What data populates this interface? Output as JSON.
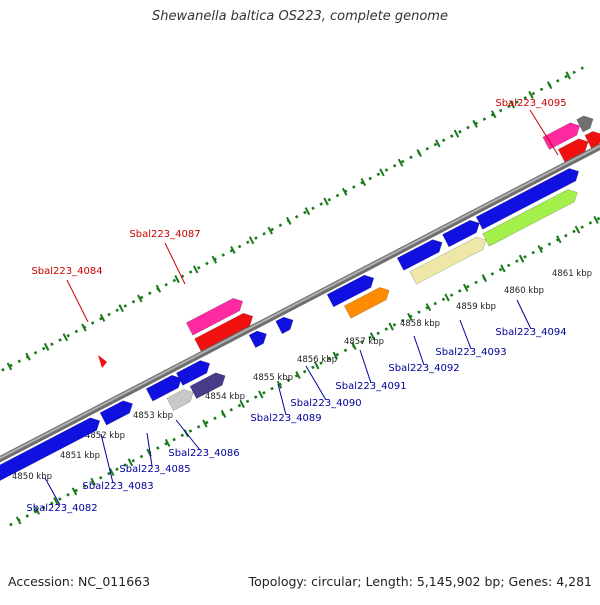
{
  "title": "Shewanella baltica OS223, complete genome",
  "footer": {
    "accession": "Accession: NC_011663",
    "summary": "Topology: circular; Length: 5,145,902 bp; Genes: 4,281"
  },
  "colors": {
    "forward_label": "#cc0000",
    "reverse_label": "#000099",
    "backbone": "#8a8a8a",
    "tick": "#1a7a1a"
  },
  "scale_ticks": [
    "4850 kbp",
    "4851 kbp",
    "4852 kbp",
    "4853 kbp",
    "4854 kbp",
    "4855 kbp",
    "4856 kbp",
    "4857 kbp",
    "4858 kbp",
    "4859 kbp",
    "4860 kbp",
    "4861 kbp"
  ],
  "gene_labels": [
    {
      "text": "Sbal223_4095",
      "strand": "forward"
    },
    {
      "text": "Sbal223_4087",
      "strand": "forward"
    },
    {
      "text": "Sbal223_4084",
      "strand": "forward"
    },
    {
      "text": "Sbal223_4094",
      "strand": "reverse"
    },
    {
      "text": "Sbal223_4093",
      "strand": "reverse"
    },
    {
      "text": "Sbal223_4092",
      "strand": "reverse"
    },
    {
      "text": "Sbal223_4091",
      "strand": "reverse"
    },
    {
      "text": "Sbal223_4090",
      "strand": "reverse"
    },
    {
      "text": "Sbal223_4089",
      "strand": "reverse"
    },
    {
      "text": "Sbal223_4086",
      "strand": "reverse"
    },
    {
      "text": "Sbal223_4085",
      "strand": "reverse"
    },
    {
      "text": "Sbal223_4083",
      "strand": "reverse"
    },
    {
      "text": "Sbal223_4082",
      "strand": "reverse"
    }
  ]
}
